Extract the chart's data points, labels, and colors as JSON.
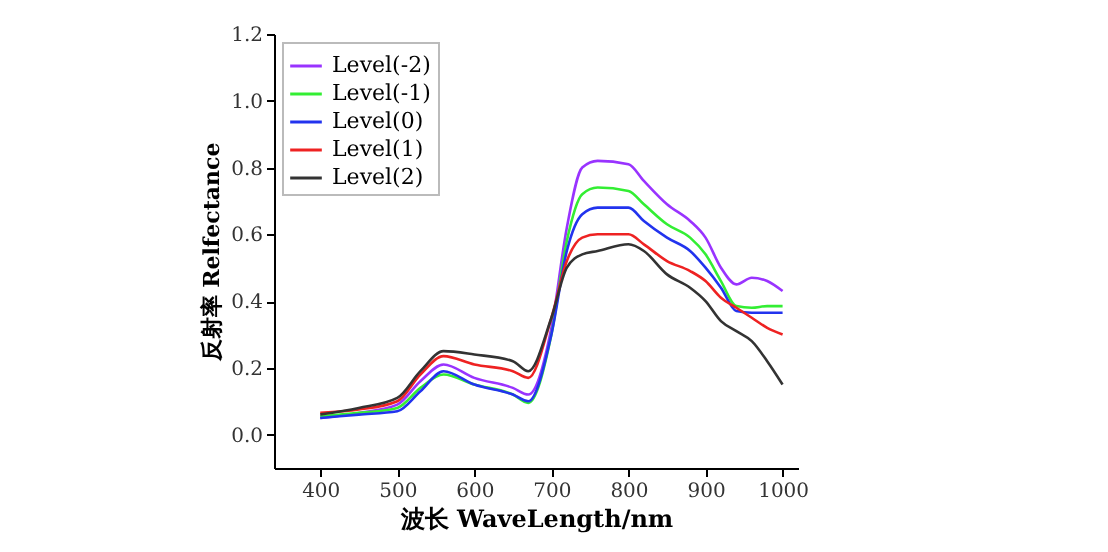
{
  "chart_data": {
    "type": "line",
    "xlabel": "波长 WaveLength/nm",
    "ylabel": "反射率 Relfectance",
    "x": [
      400,
      450,
      500,
      530,
      560,
      600,
      650,
      670,
      700,
      720,
      740,
      760,
      800,
      820,
      850,
      880,
      900,
      920,
      940,
      960,
      980,
      1000
    ],
    "series": [
      {
        "name": "Level(-2)",
        "color": "#9933ff",
        "values": [
          0.05,
          0.065,
          0.09,
          0.16,
          0.21,
          0.17,
          0.14,
          0.12,
          0.32,
          0.62,
          0.8,
          0.82,
          0.81,
          0.76,
          0.69,
          0.64,
          0.59,
          0.5,
          0.45,
          0.47,
          0.46,
          0.43
        ]
      },
      {
        "name": "Level(-1)",
        "color": "#33ee33",
        "values": [
          0.055,
          0.065,
          0.08,
          0.14,
          0.18,
          0.15,
          0.12,
          0.095,
          0.3,
          0.58,
          0.72,
          0.74,
          0.73,
          0.69,
          0.63,
          0.59,
          0.54,
          0.46,
          0.385,
          0.38,
          0.385,
          0.385
        ]
      },
      {
        "name": "Level(0)",
        "color": "#2233ee",
        "values": [
          0.05,
          0.06,
          0.07,
          0.13,
          0.19,
          0.15,
          0.12,
          0.1,
          0.3,
          0.55,
          0.66,
          0.68,
          0.68,
          0.64,
          0.59,
          0.55,
          0.5,
          0.44,
          0.37,
          0.365,
          0.365,
          0.365
        ]
      },
      {
        "name": "Level(1)",
        "color": "#ee2222",
        "values": [
          0.065,
          0.075,
          0.1,
          0.18,
          0.235,
          0.21,
          0.19,
          0.17,
          0.35,
          0.52,
          0.59,
          0.6,
          0.6,
          0.57,
          0.52,
          0.49,
          0.46,
          0.41,
          0.38,
          0.35,
          0.32,
          0.3
        ]
      },
      {
        "name": "Level(2)",
        "color": "#333333",
        "values": [
          0.06,
          0.08,
          0.11,
          0.19,
          0.25,
          0.24,
          0.22,
          0.19,
          0.35,
          0.5,
          0.54,
          0.55,
          0.57,
          0.55,
          0.48,
          0.44,
          0.4,
          0.34,
          0.31,
          0.28,
          0.22,
          0.15
        ]
      }
    ],
    "xlim": [
      340,
      1020
    ],
    "xticks": [
      400,
      500,
      600,
      700,
      800,
      900,
      1000
    ],
    "ylim": [
      -0.1,
      1.2
    ],
    "yticks": [
      {
        "value": 0,
        "label": "0.0"
      },
      {
        "value": 0.2,
        "label": "0.2"
      },
      {
        "value": 0.4,
        "label": "0.4"
      },
      {
        "value": 0.6,
        "label": "0.6"
      },
      {
        "value": 0.8,
        "label": "0.8"
      },
      {
        "value": 1,
        "label": "1.0"
      },
      {
        "value": 1.2,
        "label": "1.2"
      }
    ],
    "legend": "top left",
    "grid": false,
    "marker": "none",
    "line_style": "solid"
  }
}
